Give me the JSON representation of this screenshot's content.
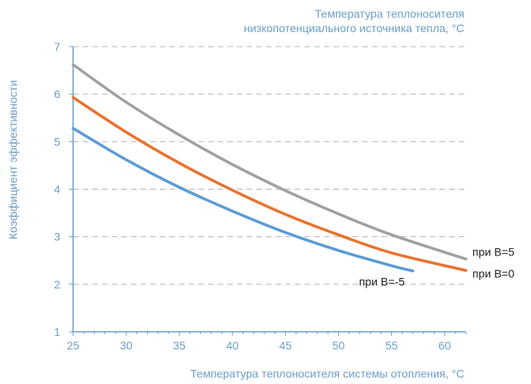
{
  "colors": {
    "axis": "#6a9ec8",
    "grid": "#b5b5b5",
    "text_blue": "#6a9ec8",
    "series_b5": "#a0a0a0",
    "series_b0": "#e8722e",
    "series_bm5": "#5b9bd5",
    "label_dark": "#222222"
  },
  "chart_data": {
    "type": "line",
    "top_title_line1": "Температура теплоносителя",
    "top_title_line2": "низкопотенциального источника тепла, °C",
    "xlabel": "Температура теплоносителя системы отопления, °C",
    "ylabel": "Коэффициент эффективности",
    "xlim": [
      25,
      62
    ],
    "ylim": [
      1,
      7
    ],
    "xticks": [
      25,
      30,
      35,
      40,
      45,
      50,
      55,
      60
    ],
    "yticks": [
      1,
      2,
      3,
      4,
      5,
      6,
      7
    ],
    "grid": "horizontal-dashed",
    "series": [
      {
        "name": "при B=5",
        "color_key": "series_b5",
        "x": [
          25,
          30,
          35,
          40,
          45,
          50,
          55,
          62
        ],
        "y": [
          6.62,
          5.83,
          5.14,
          4.52,
          3.97,
          3.48,
          3.04,
          2.53
        ]
      },
      {
        "name": "при B=0",
        "color_key": "series_b0",
        "x": [
          25,
          30,
          35,
          40,
          45,
          50,
          55,
          62
        ],
        "y": [
          5.93,
          5.2,
          4.55,
          3.98,
          3.47,
          3.04,
          2.66,
          2.29
        ]
      },
      {
        "name": "при B=-5",
        "color_key": "series_bm5",
        "x": [
          25,
          30,
          35,
          40,
          45,
          50,
          55,
          57
        ],
        "y": [
          5.28,
          4.62,
          4.04,
          3.54,
          3.09,
          2.71,
          2.39,
          2.28
        ]
      }
    ]
  }
}
